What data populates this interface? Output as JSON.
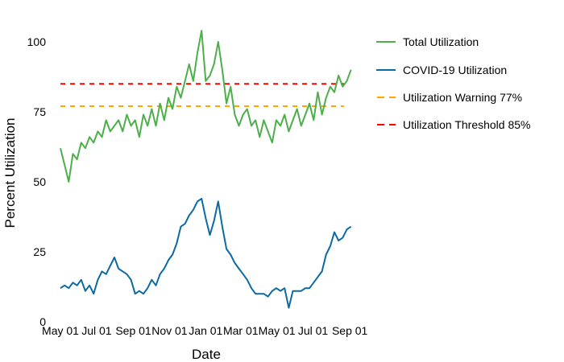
{
  "chart_data": {
    "type": "line",
    "title": "",
    "xlabel": "Date",
    "ylabel": "Percent Utilization",
    "ylim": [
      0,
      105
    ],
    "xlim": [
      "2020-05-01",
      "2021-09-05"
    ],
    "grid": false,
    "legend_position": "right",
    "yticks": [
      0,
      25,
      50,
      75,
      100
    ],
    "xticks": [
      {
        "date": "2020-05-01",
        "label": "May 01"
      },
      {
        "date": "2020-07-01",
        "label": "Jul 01"
      },
      {
        "date": "2020-09-01",
        "label": "Sep 01"
      },
      {
        "date": "2020-11-01",
        "label": "Nov 01"
      },
      {
        "date": "2021-01-01",
        "label": "Jan 01"
      },
      {
        "date": "2021-03-01",
        "label": "Mar 01"
      },
      {
        "date": "2021-05-01",
        "label": "May 01"
      },
      {
        "date": "2021-07-01",
        "label": "Jul 01"
      },
      {
        "date": "2021-09-01",
        "label": "Sep 01"
      }
    ],
    "x": [
      "2020-05-01",
      "2020-05-08",
      "2020-05-15",
      "2020-05-22",
      "2020-05-29",
      "2020-06-05",
      "2020-06-12",
      "2020-06-19",
      "2020-06-26",
      "2020-07-03",
      "2020-07-10",
      "2020-07-17",
      "2020-07-24",
      "2020-07-31",
      "2020-08-07",
      "2020-08-14",
      "2020-08-21",
      "2020-08-28",
      "2020-09-04",
      "2020-09-11",
      "2020-09-18",
      "2020-09-25",
      "2020-10-02",
      "2020-10-09",
      "2020-10-16",
      "2020-10-23",
      "2020-10-30",
      "2020-11-06",
      "2020-11-13",
      "2020-11-20",
      "2020-11-27",
      "2020-12-04",
      "2020-12-11",
      "2020-12-18",
      "2020-12-25",
      "2021-01-01",
      "2021-01-08",
      "2021-01-15",
      "2021-01-22",
      "2021-01-29",
      "2021-02-05",
      "2021-02-12",
      "2021-02-19",
      "2021-02-26",
      "2021-03-05",
      "2021-03-12",
      "2021-03-19",
      "2021-03-26",
      "2021-04-02",
      "2021-04-09",
      "2021-04-16",
      "2021-04-23",
      "2021-04-30",
      "2021-05-07",
      "2021-05-14",
      "2021-05-21",
      "2021-05-28",
      "2021-06-04",
      "2021-06-11",
      "2021-06-18",
      "2021-06-25",
      "2021-07-02",
      "2021-07-09",
      "2021-07-16",
      "2021-07-23",
      "2021-07-30",
      "2021-08-06",
      "2021-08-13",
      "2021-08-20",
      "2021-08-27",
      "2021-09-03"
    ],
    "series": [
      {
        "name": "Total Utilization",
        "color": "#4daf4a",
        "style": "solid",
        "values": [
          62,
          56,
          50,
          60,
          58,
          64,
          62,
          66,
          64,
          68,
          66,
          72,
          68,
          70,
          72,
          68,
          74,
          70,
          72,
          66,
          74,
          70,
          76,
          70,
          78,
          72,
          80,
          76,
          84,
          80,
          86,
          92,
          86,
          96,
          104,
          86,
          88,
          92,
          100,
          90,
          78,
          84,
          74,
          70,
          74,
          76,
          70,
          72,
          66,
          72,
          68,
          64,
          72,
          70,
          74,
          68,
          72,
          76,
          70,
          74,
          78,
          72,
          82,
          74,
          80,
          84,
          82,
          88,
          84,
          86,
          90
        ]
      },
      {
        "name": "COVID-19 Utilization",
        "color": "#0a6aa1",
        "style": "solid",
        "values": [
          12,
          13,
          12,
          14,
          13,
          15,
          11,
          13,
          10,
          15,
          18,
          17,
          20,
          23,
          19,
          18,
          17,
          15,
          10,
          11,
          10,
          12,
          15,
          13,
          17,
          19,
          22,
          24,
          28,
          34,
          35,
          38,
          40,
          43,
          44,
          37,
          31,
          36,
          43,
          34,
          26,
          24,
          21,
          19,
          17,
          15,
          12,
          10,
          10,
          10,
          9,
          11,
          12,
          11,
          12,
          5,
          11,
          11,
          11,
          12,
          12,
          14,
          16,
          18,
          24,
          27,
          32,
          29,
          30,
          33,
          34
        ]
      }
    ],
    "hlines": [
      {
        "name": "Utilization Warning 77%",
        "value": 77,
        "color": "#ffa500",
        "style": "dashed"
      },
      {
        "name": "Utilization Threshold 85%",
        "value": 85,
        "color": "#ff0000",
        "style": "dashed"
      }
    ]
  }
}
